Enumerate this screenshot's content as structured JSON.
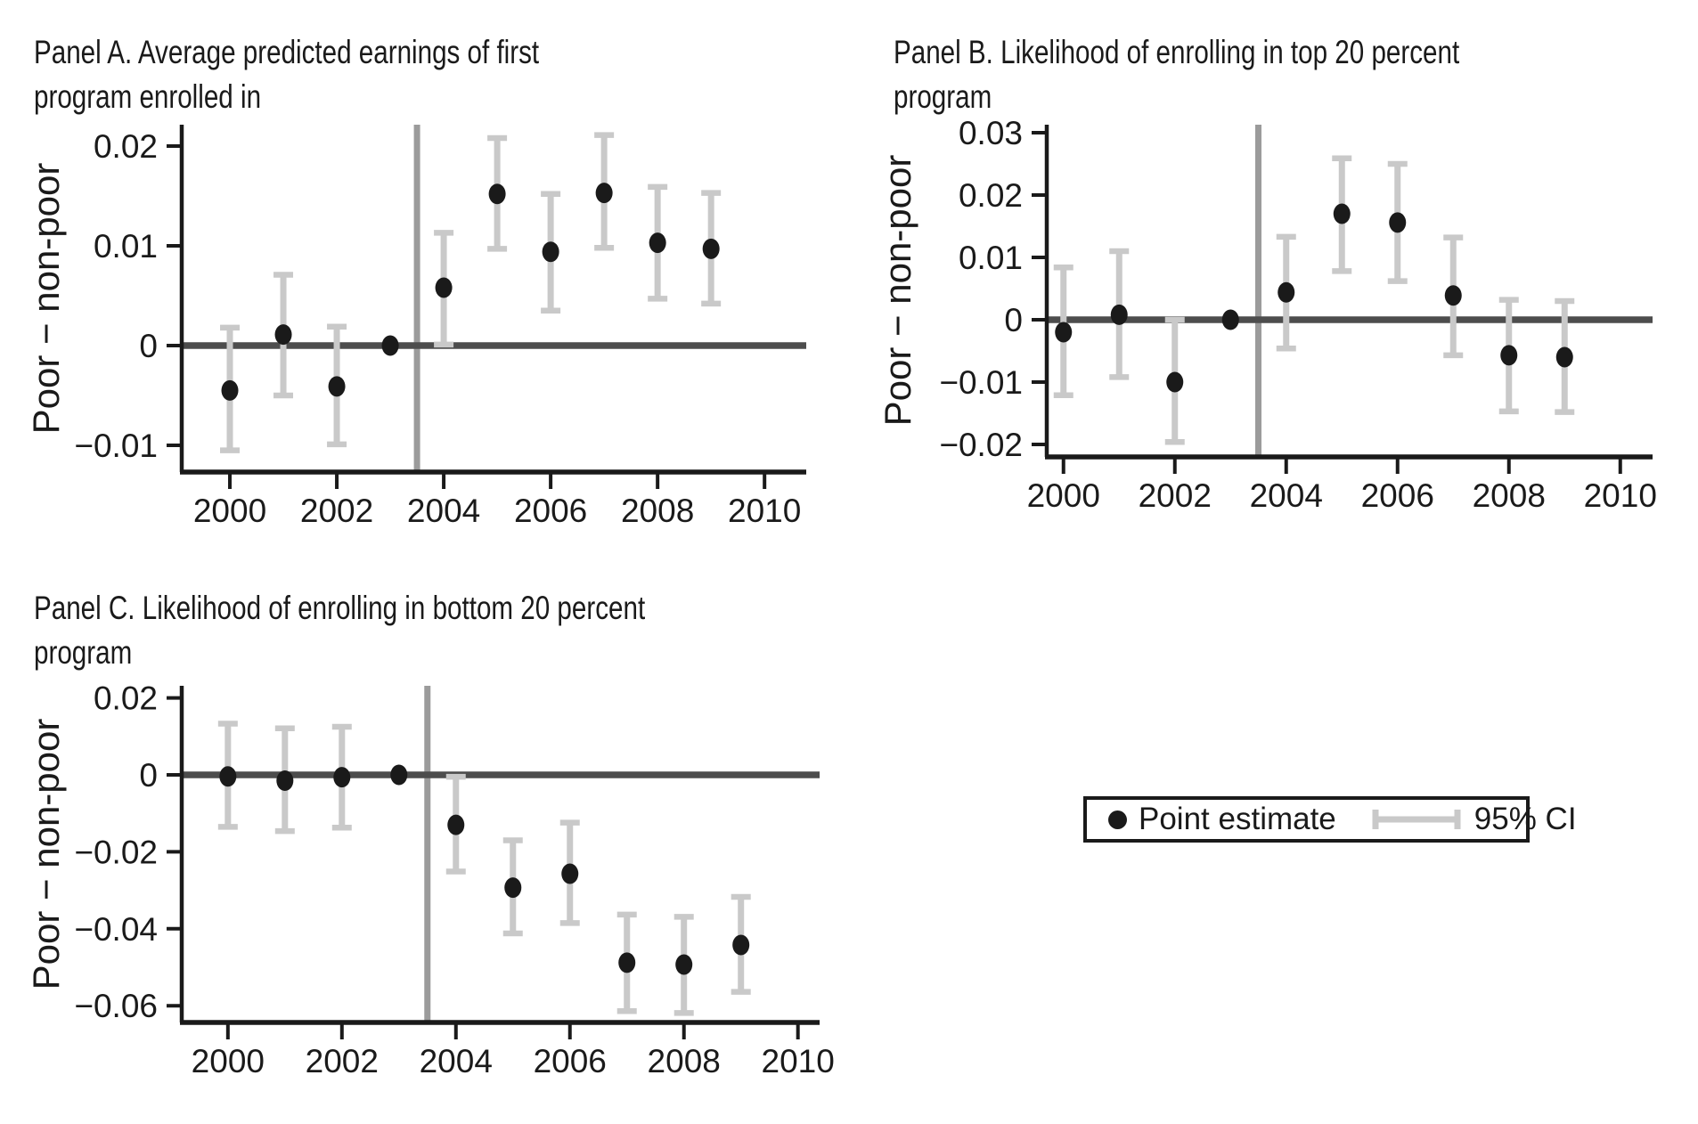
{
  "figure": {
    "background": "#ffffff",
    "legend": {
      "point_label": "Point estimate",
      "ci_label": "95% CI"
    }
  },
  "colors": {
    "point": "#1a1a1a",
    "ci": "#c9c9c9",
    "zero_line": "#4d4d4d",
    "ref_line": "#9b9b9b",
    "axis": "#1a1a1a",
    "text": "#1a1a1a"
  },
  "chart_data": [
    {
      "type": "scatter",
      "panel_label": "A",
      "title_line1": "Panel A. Average predicted earnings of first",
      "title_line2": "program enrolled in",
      "ylabel": "Poor − non-poor",
      "xlabel": "",
      "legend_position": "bottom-right-of-figure",
      "grid": false,
      "xticks": [
        2000,
        2002,
        2004,
        2006,
        2008,
        2010
      ],
      "yticks": [
        0.02,
        0.01,
        0,
        -0.01
      ],
      "xlim": [
        1999.1,
        2010.78
      ],
      "ylim": [
        -0.01268,
        0.02214
      ],
      "vline_x": 2003.5,
      "zero_line": 0,
      "reference_year": 2003,
      "series": {
        "x": [
          2000,
          2001,
          2002,
          2003,
          2004,
          2005,
          2006,
          2007,
          2008,
          2009
        ],
        "estimate": [
          -0.0045,
          0.0011,
          -0.0041,
          0.0,
          0.0058,
          0.0152,
          0.0094,
          0.0153,
          0.0103,
          0.0097
        ],
        "ci_low": [
          -0.0105,
          -0.005,
          -0.0099,
          0.0,
          0.0001,
          0.0097,
          0.0035,
          0.0098,
          0.0047,
          0.0042
        ],
        "ci_high": [
          0.0018,
          0.0071,
          0.0019,
          0.0,
          0.0113,
          0.0208,
          0.0152,
          0.0211,
          0.0159,
          0.0153
        ]
      }
    },
    {
      "type": "scatter",
      "panel_label": "B",
      "title_line1": "Panel B. Likelihood of enrolling in top 20 percent",
      "title_line2": "program",
      "ylabel": "Poor − non-poor",
      "xlabel": "",
      "grid": false,
      "xticks": [
        2000,
        2002,
        2004,
        2006,
        2008,
        2010
      ],
      "yticks": [
        0.03,
        0.02,
        0.01,
        0,
        -0.01,
        -0.02
      ],
      "xlim": [
        1999.7,
        2010.58
      ],
      "ylim": [
        -0.022,
        0.03129
      ],
      "vline_x": 2003.5,
      "zero_line": 0,
      "reference_year": 2003,
      "series": {
        "x": [
          2000,
          2001,
          2002,
          2003,
          2004,
          2005,
          2006,
          2007,
          2008,
          2009
        ],
        "estimate": [
          -0.002,
          0.0008,
          -0.01,
          0.0,
          0.0044,
          0.017,
          0.0156,
          0.0039,
          -0.0057,
          -0.006
        ],
        "ci_low": [
          -0.0121,
          -0.0092,
          -0.0196,
          0.0,
          -0.0046,
          0.0078,
          0.0062,
          -0.0057,
          -0.0147,
          -0.0148
        ],
        "ci_high": [
          0.0084,
          0.011,
          0.0,
          0.0,
          0.0133,
          0.0259,
          0.025,
          0.0132,
          0.0032,
          0.003
        ]
      }
    },
    {
      "type": "scatter",
      "panel_label": "C",
      "title_line1": "Panel C. Likelihood of enrolling in bottom 20 percent",
      "title_line2": "program",
      "ylabel": "Poor − non-poor",
      "xlabel": "",
      "grid": false,
      "xticks": [
        2000,
        2002,
        2004,
        2006,
        2008,
        2010
      ],
      "yticks": [
        0.02,
        0,
        -0.02,
        -0.04,
        -0.06
      ],
      "xlim": [
        1999.19,
        2010.38
      ],
      "ylim": [
        -0.06435,
        0.02315
      ],
      "vline_x": 2003.5,
      "zero_line": 0,
      "reference_year": 2003,
      "series": {
        "x": [
          2000,
          2001,
          2002,
          2003,
          2004,
          2005,
          2006,
          2007,
          2008,
          2009
        ],
        "estimate": [
          -0.0004,
          -0.0015,
          -0.0006,
          0.0,
          -0.013,
          -0.0293,
          -0.0257,
          -0.0488,
          -0.0493,
          -0.0442
        ],
        "ci_low": [
          -0.0135,
          -0.0146,
          -0.0137,
          0.0,
          -0.0251,
          -0.0412,
          -0.0385,
          -0.0614,
          -0.0619,
          -0.0564
        ],
        "ci_high": [
          0.0133,
          0.0121,
          0.0125,
          0.0,
          -0.0005,
          -0.017,
          -0.0124,
          -0.0363,
          -0.0369,
          -0.0317
        ]
      }
    }
  ]
}
